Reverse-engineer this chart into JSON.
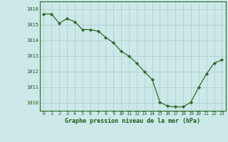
{
  "x": [
    0,
    1,
    2,
    3,
    4,
    5,
    6,
    7,
    8,
    9,
    10,
    11,
    12,
    13,
    14,
    15,
    16,
    17,
    18,
    19,
    20,
    21,
    22,
    23
  ],
  "y": [
    1015.7,
    1015.7,
    1015.1,
    1015.4,
    1015.2,
    1014.7,
    1014.7,
    1014.6,
    1014.2,
    1013.85,
    1013.3,
    1013.0,
    1012.55,
    1012.0,
    1011.5,
    1010.05,
    1009.8,
    1009.75,
    1009.75,
    1010.05,
    1011.0,
    1011.85,
    1012.55,
    1012.75
  ],
  "ylim": [
    1009.5,
    1016.5
  ],
  "yticks": [
    1010,
    1011,
    1012,
    1013,
    1014,
    1015,
    1016
  ],
  "xticks": [
    0,
    1,
    2,
    3,
    4,
    5,
    6,
    7,
    8,
    9,
    10,
    11,
    12,
    13,
    14,
    15,
    16,
    17,
    18,
    19,
    20,
    21,
    22,
    23
  ],
  "xlabel": "Graphe pression niveau de la mer (hPa)",
  "line_color": "#2d6a2d",
  "marker_color": "#2d6a2d",
  "bg_color": "#cce8e8",
  "grid_color": "#aacccc",
  "text_color": "#1a5c1a",
  "title_color": "#1a5c1a"
}
